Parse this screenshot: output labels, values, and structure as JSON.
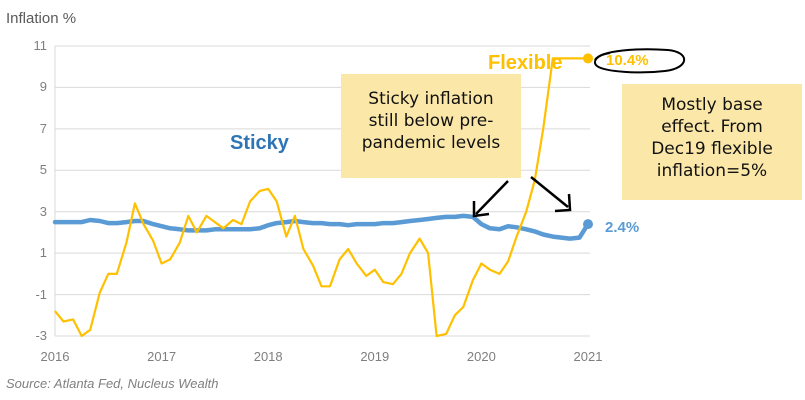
{
  "chart_data": {
    "type": "line",
    "ylabel": "Inflation %",
    "ylim": [
      -3,
      11
    ],
    "yticks": [
      "11",
      "9",
      "7",
      "5",
      "3",
      "1",
      "-1",
      "-3"
    ],
    "xlim": [
      2016,
      2021
    ],
    "xticks": [
      "2016",
      "2017",
      "2018",
      "2019",
      "2020",
      "2021"
    ],
    "grid": "horizontal",
    "source": "Source: Atlanta Fed, Nucleus Wealth",
    "series": [
      {
        "name": "Sticky",
        "color": "#5b9bd5",
        "end_value": 2.4,
        "end_label": "2.4%",
        "x": [
          2016.0,
          2016.08,
          2016.17,
          2016.25,
          2016.33,
          2016.42,
          2016.5,
          2016.58,
          2016.67,
          2016.75,
          2016.83,
          2016.92,
          2017.0,
          2017.08,
          2017.17,
          2017.25,
          2017.33,
          2017.42,
          2017.5,
          2017.58,
          2017.67,
          2017.75,
          2017.83,
          2017.92,
          2018.0,
          2018.08,
          2018.17,
          2018.25,
          2018.33,
          2018.42,
          2018.5,
          2018.58,
          2018.67,
          2018.75,
          2018.83,
          2018.92,
          2019.0,
          2019.08,
          2019.17,
          2019.25,
          2019.33,
          2019.42,
          2019.5,
          2019.58,
          2019.67,
          2019.75,
          2019.83,
          2019.92,
          2020.0,
          2020.08,
          2020.17,
          2020.25,
          2020.33,
          2020.42,
          2020.5,
          2020.58,
          2020.67,
          2020.75,
          2020.83,
          2020.92,
          2021.0
        ],
        "y": [
          2.5,
          2.5,
          2.5,
          2.5,
          2.6,
          2.55,
          2.45,
          2.45,
          2.5,
          2.55,
          2.55,
          2.4,
          2.3,
          2.2,
          2.15,
          2.1,
          2.1,
          2.1,
          2.15,
          2.15,
          2.15,
          2.15,
          2.15,
          2.2,
          2.35,
          2.45,
          2.5,
          2.55,
          2.5,
          2.45,
          2.45,
          2.4,
          2.4,
          2.35,
          2.4,
          2.4,
          2.4,
          2.45,
          2.45,
          2.5,
          2.55,
          2.6,
          2.65,
          2.7,
          2.75,
          2.75,
          2.8,
          2.75,
          2.4,
          2.2,
          2.15,
          2.3,
          2.25,
          2.15,
          2.05,
          1.9,
          1.8,
          1.75,
          1.7,
          1.75,
          2.4
        ]
      },
      {
        "name": "Flexible",
        "color": "#ffc000",
        "end_value": 10.4,
        "end_label": "10.4%",
        "x": [
          2016.0,
          2016.08,
          2016.17,
          2016.25,
          2016.33,
          2016.42,
          2016.5,
          2016.58,
          2016.67,
          2016.75,
          2016.83,
          2016.92,
          2017.0,
          2017.08,
          2017.17,
          2017.25,
          2017.33,
          2017.42,
          2017.5,
          2017.58,
          2017.67,
          2017.75,
          2017.83,
          2017.92,
          2018.0,
          2018.08,
          2018.17,
          2018.25,
          2018.33,
          2018.42,
          2018.5,
          2018.58,
          2018.67,
          2018.75,
          2018.83,
          2018.92,
          2019.0,
          2019.08,
          2019.17,
          2019.25,
          2019.33,
          2019.42,
          2019.5,
          2019.58,
          2019.67,
          2019.75,
          2019.83,
          2019.92,
          2020.0,
          2020.08,
          2020.17,
          2020.25,
          2020.33,
          2020.42,
          2020.5,
          2020.58,
          2020.67,
          2020.75,
          2020.83,
          2020.92,
          2021.0
        ],
        "y": [
          -1.8,
          -2.3,
          -2.2,
          -3.0,
          -2.7,
          -0.9,
          0.0,
          0.0,
          1.5,
          3.4,
          2.4,
          1.6,
          0.5,
          0.7,
          1.5,
          2.8,
          2.0,
          2.8,
          2.5,
          2.2,
          2.6,
          2.4,
          3.5,
          4.0,
          4.1,
          3.5,
          1.8,
          2.8,
          1.2,
          0.4,
          -0.6,
          -0.6,
          0.7,
          1.2,
          0.5,
          -0.1,
          0.2,
          -0.4,
          -0.5,
          0.0,
          1.0,
          1.7,
          1.0,
          -3.1,
          -2.9,
          -2.0,
          -1.6,
          -0.3,
          0.5,
          0.2,
          0.0,
          0.6,
          1.8,
          3.0,
          4.5,
          7.0,
          10.4,
          10.4,
          10.4,
          10.4,
          10.4
        ]
      }
    ],
    "annotations": [
      {
        "text_lines": [
          "Sticky inflation",
          "still below pre-",
          "pandemic levels"
        ]
      },
      {
        "text_lines": [
          "Mostly base",
          "effect. From",
          "Dec19 flexible",
          "inflation=5%"
        ]
      }
    ]
  }
}
